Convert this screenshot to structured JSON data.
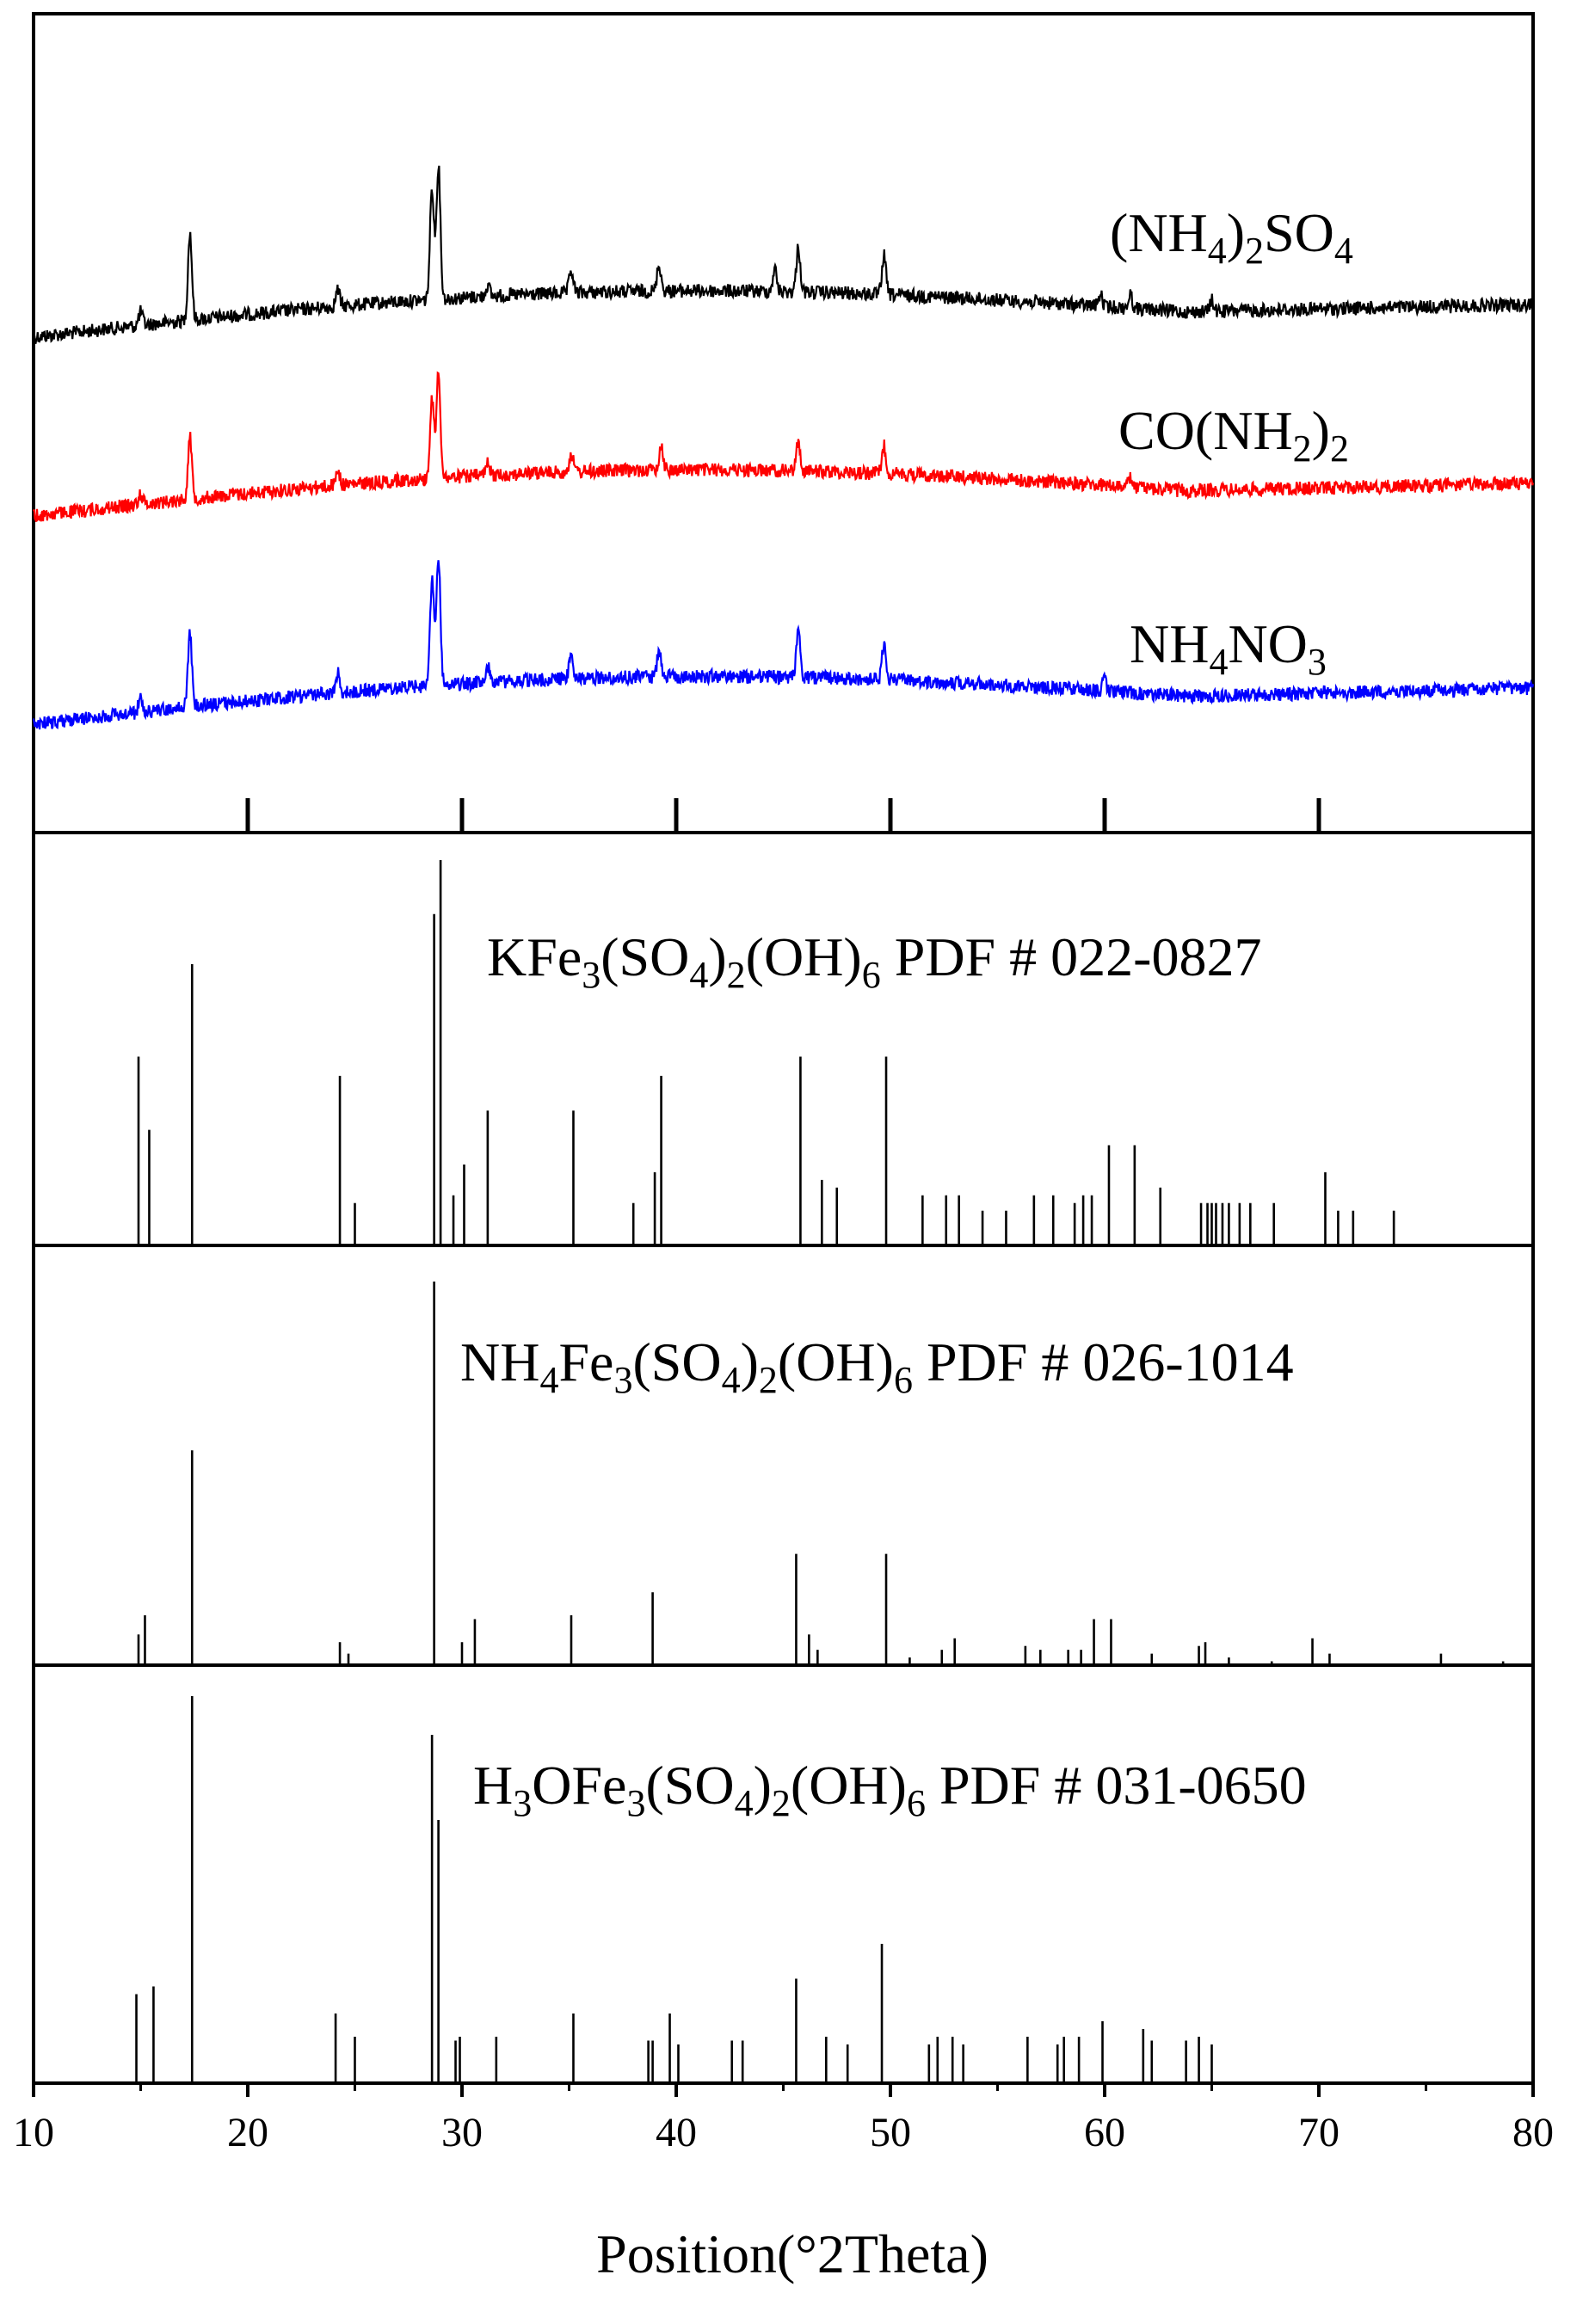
{
  "chart_data": [
    {
      "type": "line",
      "panel": "diffraction patterns",
      "xlim": [
        10,
        80
      ],
      "series": [
        {
          "name": "(NH4)2SO4",
          "color": "#000000",
          "label": {
            "base1": "(NH",
            "sub1": "4",
            "base2": ")",
            "sub2": "2",
            "base3": "SO",
            "sub3": "4"
          },
          "peaks": [
            {
              "x": 15.0,
              "h": 12
            },
            {
              "x": 17.3,
              "h": 78
            },
            {
              "x": 24.2,
              "h": 15
            },
            {
              "x": 28.6,
              "h": 100
            },
            {
              "x": 28.9,
              "h": 120
            },
            {
              "x": 31.2,
              "h": 10
            },
            {
              "x": 35.1,
              "h": 20
            },
            {
              "x": 39.2,
              "h": 24
            },
            {
              "x": 44.6,
              "h": 20
            },
            {
              "x": 45.7,
              "h": 40
            },
            {
              "x": 49.7,
              "h": 35
            },
            {
              "x": 59.8,
              "h": 10
            },
            {
              "x": 61.2,
              "h": 12
            },
            {
              "x": 65.0,
              "h": 10
            }
          ]
        },
        {
          "name": "CO(NH2)2",
          "color": "#ff0000",
          "label": {
            "base1": "CO(NH",
            "sub1": "2",
            "base2": ")",
            "sub2": "2"
          },
          "peaks": [
            {
              "x": 15.0,
              "h": 10
            },
            {
              "x": 17.3,
              "h": 55
            },
            {
              "x": 24.2,
              "h": 14
            },
            {
              "x": 28.6,
              "h": 70
            },
            {
              "x": 28.9,
              "h": 95
            },
            {
              "x": 31.2,
              "h": 10
            },
            {
              "x": 35.1,
              "h": 16
            },
            {
              "x": 39.3,
              "h": 22
            },
            {
              "x": 45.7,
              "h": 26
            },
            {
              "x": 49.7,
              "h": 25
            },
            {
              "x": 61.2,
              "h": 8
            }
          ]
        },
        {
          "name": "NH4NO3",
          "color": "#0000ff",
          "label": {
            "base1": "NH",
            "sub1": "4",
            "base2": "NO",
            "sub2": "3"
          },
          "peaks": [
            {
              "x": 15.0,
              "h": 14
            },
            {
              "x": 17.3,
              "h": 65
            },
            {
              "x": 24.2,
              "h": 18
            },
            {
              "x": 28.6,
              "h": 95
            },
            {
              "x": 28.9,
              "h": 115
            },
            {
              "x": 31.2,
              "h": 14
            },
            {
              "x": 35.1,
              "h": 22
            },
            {
              "x": 39.2,
              "h": 24
            },
            {
              "x": 45.7,
              "h": 40
            },
            {
              "x": 49.7,
              "h": 32
            },
            {
              "x": 60.0,
              "h": 10
            }
          ]
        }
      ]
    },
    {
      "type": "bar",
      "panel": "reference pattern",
      "xlim": [
        10,
        80
      ],
      "label": {
        "base1": "KFe",
        "sub1": "3",
        "base2": "(SO",
        "sub2": "4",
        "base3": ")",
        "sub3": "2",
        "base4": "(OH)",
        "sub4": "6",
        "base5": "  PDF  # 022-0827"
      },
      "x": [
        14.9,
        15.4,
        17.4,
        24.3,
        25.0,
        28.7,
        29.0,
        29.6,
        30.1,
        31.2,
        35.2,
        38.0,
        39.0,
        39.3,
        45.8,
        46.8,
        47.5,
        49.8,
        51.5,
        52.6,
        53.2,
        54.3,
        55.4,
        56.7,
        57.6,
        58.6,
        59.0,
        59.4,
        60.2,
        61.4,
        62.6,
        64.5,
        64.8,
        65.0,
        65.2,
        65.5,
        65.8,
        66.3,
        66.8,
        67.9,
        70.3,
        70.9,
        71.6,
        73.5
      ],
      "values": [
        49,
        30,
        73,
        44,
        11,
        86,
        100,
        13,
        21,
        35,
        35,
        11,
        19,
        44,
        49,
        17,
        15,
        49,
        13,
        13,
        13,
        9,
        9,
        13,
        13,
        11,
        13,
        13,
        26,
        26,
        15,
        11,
        11,
        11,
        11,
        11,
        11,
        11,
        11,
        11,
        19,
        9,
        9,
        9
      ]
    },
    {
      "type": "bar",
      "panel": "reference pattern",
      "xlim": [
        10,
        80
      ],
      "label": {
        "base1": "NH",
        "sub1": "4",
        "base2": "Fe",
        "sub2": "3",
        "base3": "(SO",
        "sub3": "4",
        "base4": ")",
        "sub4": "2",
        "base5": "(OH)",
        "sub5": "6",
        "base6": " PDF # 026-1014"
      },
      "x": [
        14.9,
        15.2,
        17.4,
        24.3,
        24.7,
        28.7,
        30.0,
        30.6,
        35.1,
        38.9,
        45.6,
        46.2,
        46.6,
        49.8,
        50.9,
        52.4,
        53.0,
        56.3,
        57.0,
        58.3,
        58.9,
        59.5,
        60.3,
        62.2,
        64.4,
        64.7,
        65.8,
        67.8,
        69.7,
        70.5,
        75.7,
        78.6
      ],
      "values": [
        8,
        13,
        56,
        6,
        3,
        100,
        6,
        12,
        13,
        19,
        29,
        8,
        4,
        29,
        2,
        4,
        7,
        5,
        4,
        4,
        4,
        12,
        12,
        3,
        5,
        6,
        2,
        1,
        7,
        3,
        3,
        1
      ]
    },
    {
      "type": "bar",
      "panel": "reference pattern",
      "xlim": [
        10,
        80
      ],
      "label": {
        "base1": "H",
        "sub1": "3",
        "base2": "OFe",
        "sub2": "3",
        "base3": "(SO",
        "sub3": "4",
        "base4": ")",
        "sub4": "2",
        "base5": "(OH)",
        "sub5": "6",
        "base6": "  PDF # 031-0650"
      },
      "x": [
        14.8,
        15.6,
        17.4,
        24.1,
        25.0,
        28.6,
        28.9,
        29.7,
        29.9,
        31.6,
        35.2,
        38.7,
        38.9,
        39.7,
        40.1,
        42.6,
        43.1,
        45.6,
        47.0,
        48.0,
        49.6,
        51.8,
        52.2,
        52.9,
        53.4,
        56.4,
        57.8,
        58.1,
        58.8,
        59.9,
        61.8,
        62.2,
        63.8,
        64.4,
        65.0
      ],
      "values": [
        23,
        25,
        100,
        18,
        12,
        90,
        68,
        11,
        12,
        12,
        18,
        11,
        11,
        18,
        10,
        11,
        11,
        27,
        12,
        10,
        36,
        10,
        12,
        12,
        10,
        12,
        10,
        12,
        12,
        16,
        14,
        11,
        11,
        12,
        10
      ]
    }
  ],
  "x_axis": {
    "label": "Position(°2Theta)",
    "ticks": [
      "10",
      "20",
      "30",
      "40",
      "50",
      "60",
      "70",
      "80"
    ]
  }
}
